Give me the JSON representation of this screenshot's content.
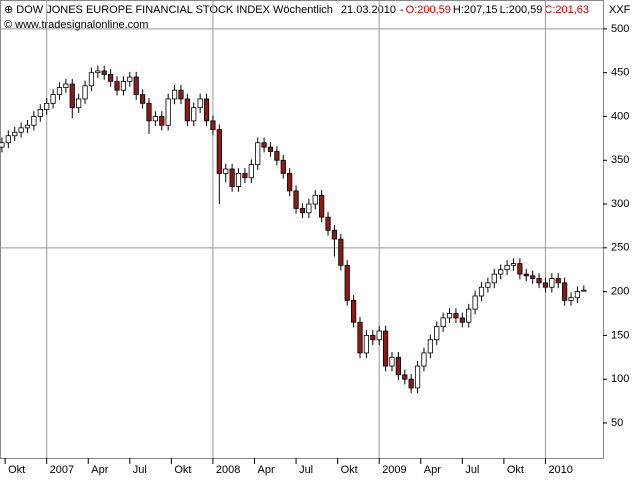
{
  "chart_data": {
    "type": "candlestick",
    "header": {
      "title": "DOW JONES EUROPE FINANCIAL STOCK INDEX Wöchentlich",
      "date": "21.03.2010",
      "separator": "-",
      "open": "O:200,59",
      "high": "H:207,15",
      "low": "L:200,59",
      "close": "C:201,63"
    },
    "source": "© www.tradesignalonline.com",
    "symbol": "XXF",
    "up_color": "#ffffff",
    "down_color": "#8b1a1a",
    "open": [
      365,
      370,
      378,
      382,
      387,
      390,
      400,
      408,
      415,
      425,
      433,
      437,
      410,
      420,
      435,
      450,
      452,
      448,
      440,
      430,
      440,
      445,
      425,
      415,
      395,
      400,
      390,
      420,
      430,
      420,
      395,
      410,
      420,
      395,
      385,
      335,
      340,
      320,
      335,
      330,
      345,
      370,
      365,
      360,
      350,
      335,
      315,
      295,
      290,
      300,
      310,
      285,
      270,
      260,
      230,
      190,
      165,
      130,
      150,
      145,
      155,
      115,
      125,
      105,
      100,
      90,
      115,
      130,
      145,
      160,
      170,
      175,
      170,
      165,
      180,
      195,
      205,
      210,
      220,
      225,
      230,
      232,
      220,
      218,
      215,
      210,
      205,
      215,
      210,
      190,
      193,
      200.59
    ],
    "high": [
      376,
      384,
      388,
      393,
      396,
      406,
      414,
      421,
      431,
      439,
      443,
      443,
      426,
      441,
      456,
      458,
      458,
      454,
      446,
      446,
      451,
      451,
      431,
      421,
      406,
      406,
      426,
      436,
      436,
      426,
      416,
      426,
      426,
      401,
      391,
      346,
      346,
      341,
      341,
      351,
      376,
      376,
      371,
      366,
      356,
      341,
      321,
      301,
      306,
      316,
      316,
      291,
      276,
      266,
      236,
      196,
      171,
      156,
      156,
      161,
      161,
      131,
      131,
      111,
      106,
      121,
      136,
      151,
      166,
      176,
      181,
      181,
      176,
      186,
      201,
      211,
      216,
      226,
      231,
      236,
      238,
      238,
      226,
      224,
      221,
      216,
      221,
      221,
      216,
      199,
      206,
      207.15
    ],
    "low": [
      359,
      364,
      372,
      376,
      381,
      384,
      394,
      402,
      409,
      419,
      427,
      398,
      404,
      414,
      429,
      444,
      442,
      434,
      424,
      424,
      434,
      419,
      409,
      380,
      389,
      384,
      384,
      414,
      414,
      389,
      389,
      404,
      389,
      379,
      300,
      325,
      314,
      314,
      324,
      324,
      339,
      359,
      354,
      344,
      329,
      309,
      289,
      284,
      284,
      294,
      279,
      264,
      240,
      224,
      184,
      159,
      124,
      124,
      139,
      139,
      109,
      109,
      99,
      94,
      84,
      84,
      109,
      124,
      139,
      154,
      164,
      164,
      159,
      159,
      174,
      189,
      199,
      204,
      214,
      219,
      224,
      214,
      212,
      209,
      204,
      199,
      199,
      204,
      184,
      184,
      187,
      200.59
    ],
    "close": [
      370,
      378,
      382,
      387,
      390,
      400,
      408,
      415,
      425,
      433,
      437,
      410,
      420,
      435,
      450,
      452,
      448,
      440,
      430,
      440,
      445,
      425,
      415,
      395,
      400,
      390,
      420,
      430,
      420,
      395,
      410,
      420,
      395,
      385,
      335,
      340,
      320,
      335,
      330,
      345,
      370,
      365,
      360,
      350,
      335,
      315,
      295,
      290,
      300,
      310,
      285,
      270,
      260,
      230,
      190,
      165,
      130,
      150,
      145,
      155,
      115,
      125,
      105,
      100,
      90,
      115,
      130,
      145,
      160,
      170,
      175,
      170,
      165,
      180,
      195,
      205,
      210,
      220,
      225,
      230,
      232,
      220,
      218,
      215,
      210,
      205,
      215,
      210,
      190,
      193,
      200,
      201.63
    ],
    "xlim": [
      -0.3,
      94
    ],
    "xticks": [
      {
        "value": 0.5,
        "label": "Okt"
      },
      {
        "value": 7.0,
        "label": "2007"
      },
      {
        "value": 13.5,
        "label": "Apr"
      },
      {
        "value": 20.0,
        "label": "Jul"
      },
      {
        "value": 26.5,
        "label": "Okt"
      },
      {
        "value": 33.0,
        "label": "2008"
      },
      {
        "value": 39.5,
        "label": "Apr"
      },
      {
        "value": 46.0,
        "label": "Jul"
      },
      {
        "value": 52.5,
        "label": "Okt"
      },
      {
        "value": 59.0,
        "label": "2009"
      },
      {
        "value": 65.5,
        "label": "Apr"
      },
      {
        "value": 72.0,
        "label": "Jul"
      },
      {
        "value": 78.5,
        "label": "Okt"
      },
      {
        "value": 85.0,
        "label": "2010"
      }
    ],
    "xgrid": [
      7.0,
      33.0,
      59.0,
      85.0
    ],
    "ylim": [
      10,
      533
    ],
    "yticks": [
      50,
      100,
      150,
      200,
      250,
      300,
      350,
      400,
      450,
      500
    ],
    "ygrid": [
      250,
      500
    ]
  }
}
